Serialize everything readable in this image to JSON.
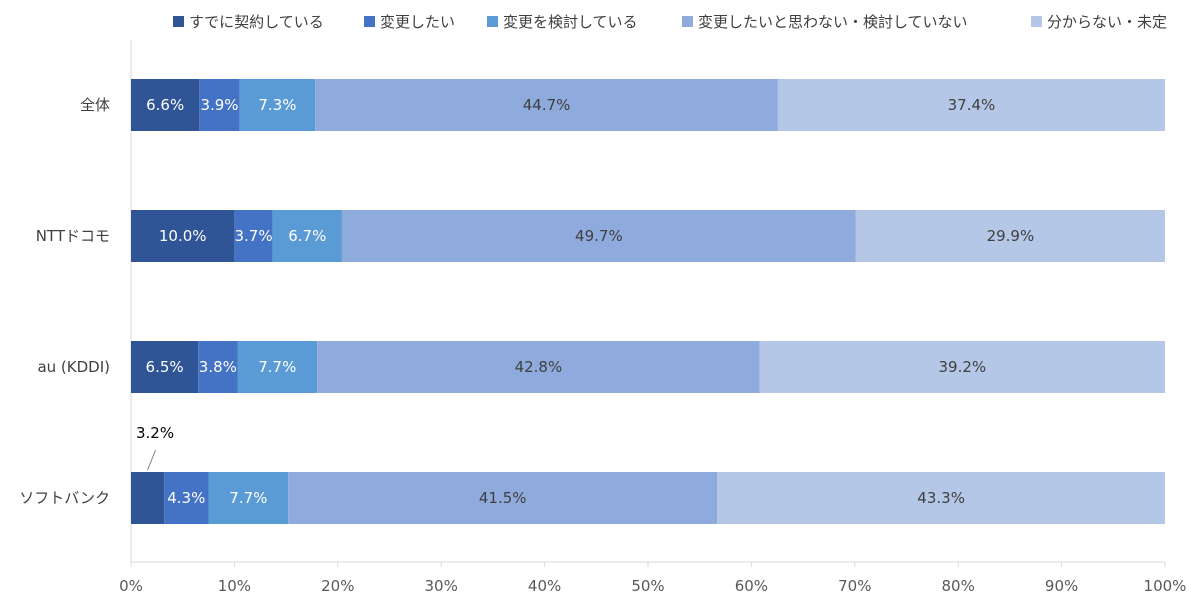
{
  "chart_data": {
    "type": "bar",
    "orientation": "horizontal",
    "stacked": "percent",
    "categories": [
      "全体",
      "NTTドコモ",
      "au (KDDI)",
      "ソフトバンク"
    ],
    "series": [
      {
        "name": "すでに契約している",
        "values": [
          6.6,
          10.0,
          6.5,
          3.2
        ],
        "labels": [
          "6.6%",
          "10.0%",
          "6.5%",
          "3.2%"
        ],
        "color": "#2F5597",
        "label_color": "#ffffff"
      },
      {
        "name": "変更したい",
        "values": [
          3.9,
          3.7,
          3.8,
          4.3
        ],
        "labels": [
          "3.9%",
          "3.7%",
          "3.8%",
          "4.3%"
        ],
        "color": "#4472C4",
        "label_color": "#ffffff"
      },
      {
        "name": "変更を検討している",
        "values": [
          7.3,
          6.7,
          7.7,
          7.7
        ],
        "labels": [
          "7.3%",
          "6.7%",
          "7.7%",
          "7.7%"
        ],
        "color": "#5B9BD5",
        "label_color": "#ffffff"
      },
      {
        "name": "変更したいと思わない・検討していない",
        "values": [
          44.7,
          49.7,
          42.8,
          41.5
        ],
        "labels": [
          "44.7%",
          "49.7%",
          "42.8%",
          "41.5%"
        ],
        "color": "#8FAADC",
        "label_color": "#404040"
      },
      {
        "name": "分からない・未定",
        "values": [
          37.4,
          29.9,
          39.2,
          43.3
        ],
        "labels": [
          "37.4%",
          "29.9%",
          "39.2%",
          "43.3%"
        ],
        "color": "#B4C7E7",
        "label_color": "#404040"
      }
    ],
    "x_ticks": [
      "0%",
      "10%",
      "20%",
      "30%",
      "40%",
      "50%",
      "60%",
      "70%",
      "80%",
      "90%",
      "100%"
    ],
    "xlim": [
      0,
      100
    ],
    "grid": false,
    "legend_position": "top"
  }
}
